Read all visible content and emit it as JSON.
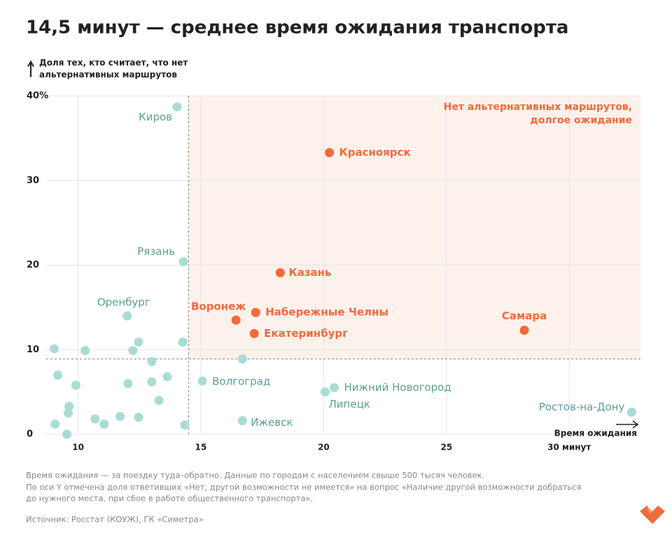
{
  "chart_data": {
    "type": "scatter",
    "title": "14,5 минут — среднее время ожидания транспорта",
    "y_label": [
      "Доля тех, кто считает, что нет",
      "альтернативных маршрутов"
    ],
    "x_label": "Время ожидания",
    "annotation": [
      "Нет альтернативных маршрутов,",
      "долгое ожидание"
    ],
    "color": "#a9dcd5",
    "label_color": "#5c9f97",
    "highlight_color": "#f26a3b",
    "region_color": "#fdf1eb",
    "xlim": [
      8.7,
      32.9
    ],
    "ylim": [
      0,
      40
    ],
    "xticks": [
      10,
      15,
      20,
      25,
      {
        "value": 30,
        "label": "30 минут"
      }
    ],
    "yticks": [
      0,
      10,
      20,
      30,
      {
        "value": 40,
        "label": "40%"
      }
    ],
    "thresholds": {
      "x": 14.5,
      "y": 8.9
    },
    "points": [
      {
        "label": "Киров",
        "x": 14.03,
        "y": 38.7
      },
      {
        "label": "Красноярск",
        "x": 20.23,
        "y": 33.3,
        "highlight": true
      },
      {
        "label": "Рязань",
        "x": 14.29,
        "y": 20.4
      },
      {
        "label": "Казань",
        "x": 18.23,
        "y": 19.1,
        "highlight": true
      },
      {
        "label": "Оренбург",
        "x": 12.0,
        "y": 14.0
      },
      {
        "label": "Воронеж",
        "x": 16.43,
        "y": 13.5,
        "highlight": true
      },
      {
        "label": "Набережные Челны",
        "x": 17.23,
        "y": 14.4,
        "highlight": true
      },
      {
        "label": "Екатеринбург",
        "x": 17.17,
        "y": 11.9,
        "highlight": true
      },
      {
        "label": "Самара",
        "x": 28.17,
        "y": 12.3,
        "highlight": true
      },
      {
        "label": "Волгоград",
        "x": 15.06,
        "y": 6.3
      },
      {
        "label": "Нижний Новогород",
        "x": 20.43,
        "y": 5.5
      },
      {
        "label": "Липецк",
        "x": 20.06,
        "y": 5.0
      },
      {
        "label": "Ижевск",
        "x": 16.69,
        "y": 1.6
      },
      {
        "label": "Ростов-на-Дону",
        "x": 32.54,
        "y": 2.6
      },
      {
        "x": 9.03,
        "y": 10.1
      },
      {
        "x": 10.29,
        "y": 9.9
      },
      {
        "x": 12.23,
        "y": 9.9
      },
      {
        "x": 12.46,
        "y": 10.9
      },
      {
        "x": 14.26,
        "y": 10.9
      },
      {
        "x": 16.69,
        "y": 8.9
      },
      {
        "x": 13.0,
        "y": 8.6
      },
      {
        "x": 9.17,
        "y": 7.0
      },
      {
        "x": 9.91,
        "y": 5.8
      },
      {
        "x": 12.03,
        "y": 6.0
      },
      {
        "x": 13.0,
        "y": 6.2
      },
      {
        "x": 13.63,
        "y": 6.8
      },
      {
        "x": 13.29,
        "y": 4.0
      },
      {
        "x": 9.63,
        "y": 3.3
      },
      {
        "x": 9.6,
        "y": 2.5
      },
      {
        "x": 9.06,
        "y": 1.2
      },
      {
        "x": 10.69,
        "y": 1.8
      },
      {
        "x": 11.06,
        "y": 1.2
      },
      {
        "x": 11.71,
        "y": 2.1
      },
      {
        "x": 12.46,
        "y": 2.0
      },
      {
        "x": 14.34,
        "y": 1.1
      },
      {
        "x": 9.54,
        "y": 0.0
      }
    ],
    "notes": [
      "Время ожидания — за поездку туда–обратно. Данные по городам с населением свыше 500 тысяч человек.",
      "По оси Y отмечена доля ответивших «Нет, другой возможности не имеется» на вопрос «Наличие другой возможности добраться",
      "до нужного места, при сбое в работе общественного транспорта»."
    ],
    "source": "Источник: Росстат (КОУЖ), ГК «Симетра»"
  }
}
